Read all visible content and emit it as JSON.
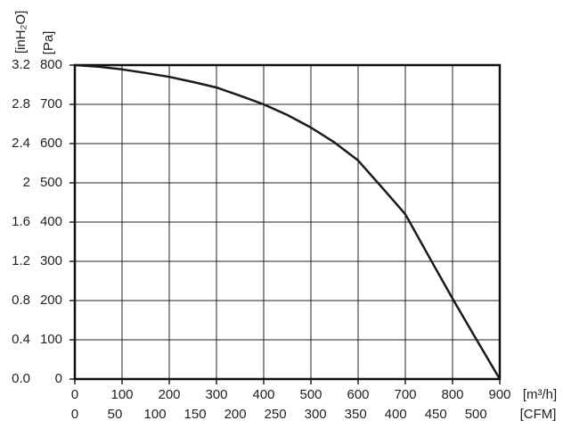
{
  "chart_data": {
    "type": "line",
    "x": [
      0,
      50,
      100,
      150,
      200,
      250,
      300,
      350,
      400,
      450,
      500,
      550,
      600,
      650,
      700,
      750,
      800,
      850,
      900
    ],
    "values": [
      800,
      796,
      789,
      780,
      770,
      757,
      743,
      722,
      700,
      673,
      641,
      603,
      557,
      489,
      420,
      312,
      205,
      102,
      0
    ],
    "color": "#1a1a1a",
    "xlim": [
      0,
      900
    ],
    "xticks": [
      0,
      100,
      200,
      300,
      400,
      500,
      600,
      700,
      800,
      900
    ],
    "ylim": [
      0,
      800
    ],
    "yticks": [
      0,
      100,
      200,
      300,
      400,
      500,
      600,
      700,
      800
    ],
    "x2lim": [
      0,
      529.72
    ],
    "x2ticks": [
      0,
      50,
      100,
      150,
      200,
      250,
      300,
      350,
      400,
      450,
      500
    ],
    "y2lim": [
      0,
      3.2
    ],
    "y2ticks": [
      {
        "value": 0,
        "label": "0.0"
      },
      0.4,
      0.8,
      1.2,
      1.6,
      2.0,
      2.4,
      2.8,
      3.2
    ],
    "xlabel": "[m³/h]",
    "x2label": "[CFM]",
    "ylabel": "[Pa]",
    "y2label": "[inH₂O]",
    "grid": true
  }
}
